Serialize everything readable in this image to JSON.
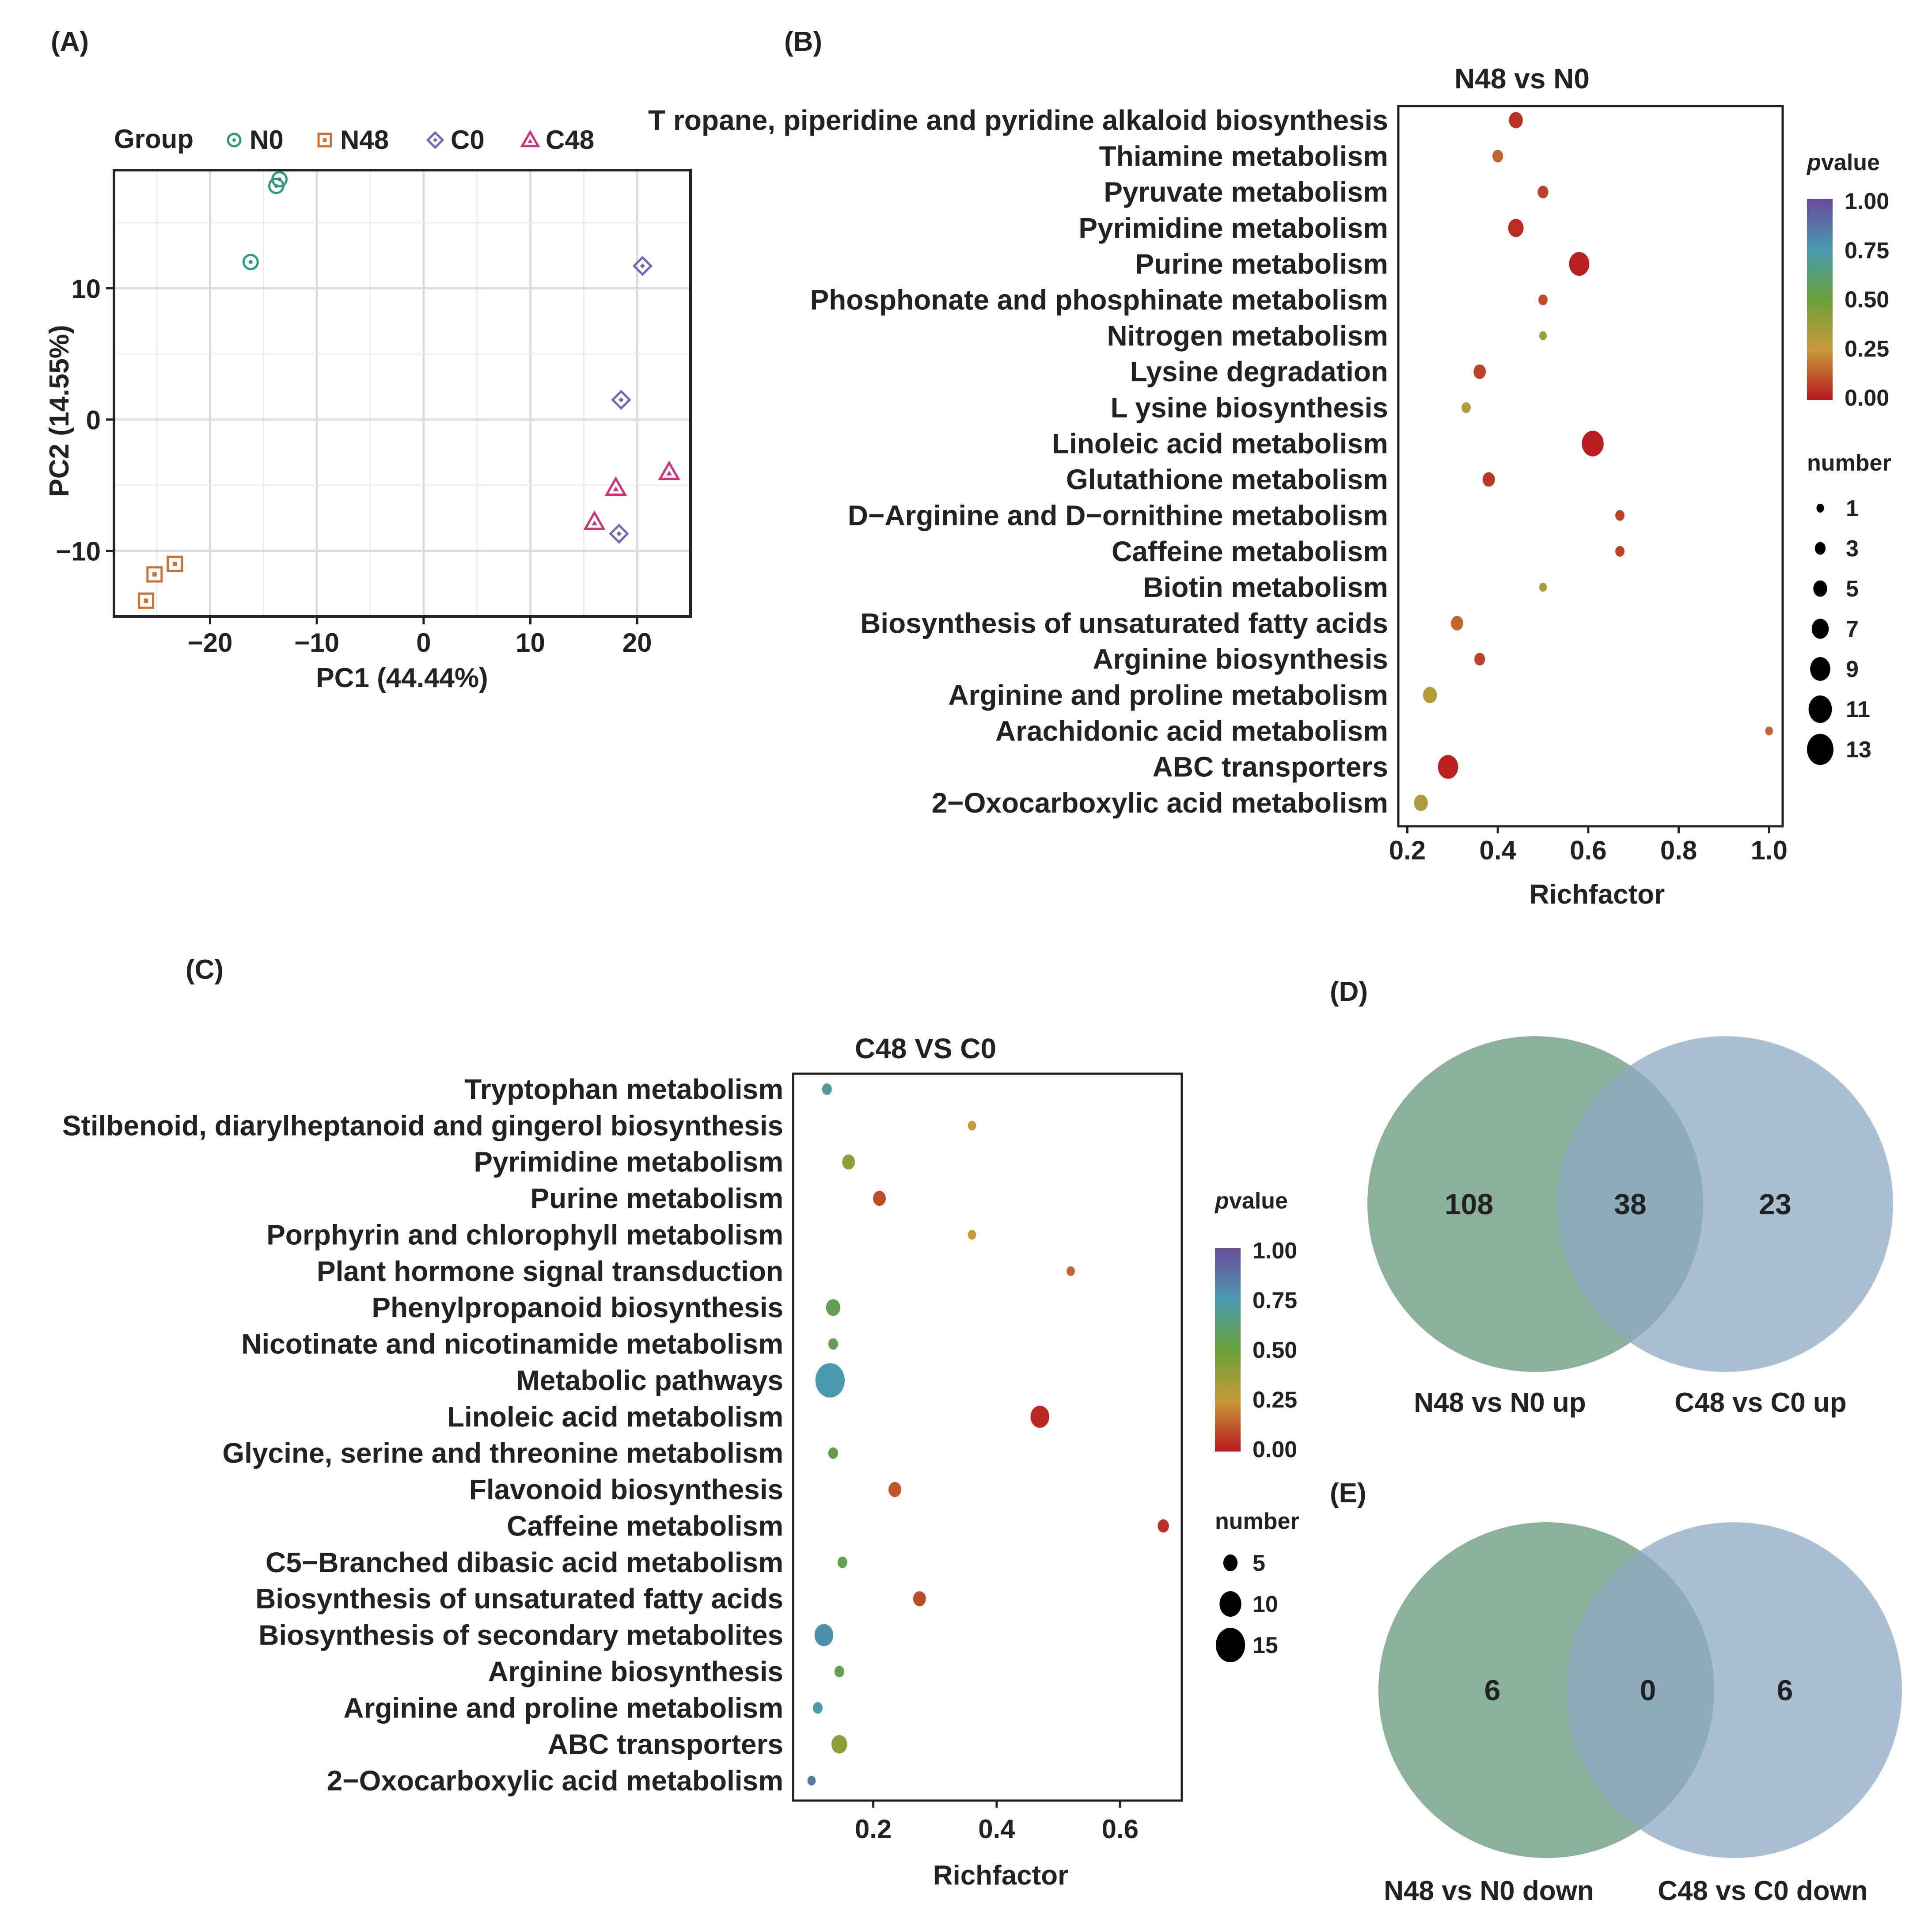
{
  "chart_data": [
    {
      "panel": "(A)",
      "type": "scatter",
      "title": "",
      "xlabel": "PC1 (44.44%)",
      "ylabel": "PC2 (14.55%)",
      "xlim": [
        -29,
        25
      ],
      "ylim": [
        -15,
        19
      ],
      "xticks": [
        -20,
        -10,
        0,
        10,
        20
      ],
      "xtick_labels": [
        "−20",
        "−10",
        "0",
        "10",
        "20"
      ],
      "yticks": [
        -10,
        0,
        10
      ],
      "ytick_labels": [
        "−10",
        "0",
        "10"
      ],
      "grid": true,
      "legend_title": "Group",
      "series": [
        {
          "name": "N0",
          "marker": "circle",
          "color": "#2e9a7a",
          "points": [
            [
              -13.5,
              18.3
            ],
            [
              -13.8,
              17.8
            ],
            [
              -16.2,
              12.0
            ]
          ]
        },
        {
          "name": "N48",
          "marker": "square",
          "color": "#d07030",
          "points": [
            [
              -23.3,
              -11.0
            ],
            [
              -25.2,
              -11.8
            ],
            [
              -26.0,
              -13.8
            ]
          ]
        },
        {
          "name": "C0",
          "marker": "diamond",
          "color": "#7468b0",
          "points": [
            [
              20.5,
              11.7
            ],
            [
              18.5,
              1.5
            ],
            [
              18.3,
              -8.7
            ]
          ]
        },
        {
          "name": "C48",
          "marker": "triangle",
          "color": "#d0307a",
          "points": [
            [
              23.0,
              -4.0
            ],
            [
              18.0,
              -5.2
            ],
            [
              16.0,
              -7.8
            ]
          ]
        }
      ]
    },
    {
      "panel": "(B)",
      "type": "scatter",
      "title": "N48 vs N0",
      "xlabel": "Richfactor",
      "ylabel": "",
      "xlim": [
        0.18,
        1.03
      ],
      "xticks": [
        0.2,
        0.4,
        0.6,
        0.8,
        1.0
      ],
      "xtick_labels": [
        "0.2",
        "0.4",
        "0.6",
        "0.8",
        "1.0"
      ],
      "color_legend_title": "value",
      "color_legend_ticks": [
        "1.00",
        "0.75",
        "0.50",
        "0.25",
        "0.00"
      ],
      "size_legend_title": "number",
      "size_legend_values": [
        1,
        3,
        5,
        7,
        9,
        11,
        13
      ],
      "size_legend_labels": [
        "1",
        "3",
        "5",
        "7",
        "9",
        "11",
        "13"
      ],
      "categories": [
        "T ropane, piperidine and pyridine alkaloid biosynthesis",
        "Thiamine metabolism",
        "Pyruvate metabolism",
        "Pyrimidine metabolism",
        "Purine metabolism",
        "Phosphonate and phosphinate metabolism",
        "Nitrogen metabolism",
        "Lysine degradation",
        "L ysine biosynthesis",
        "Linoleic acid metabolism",
        "Glutathione metabolism",
        "D−Arginine and D−ornithine metabolism",
        "Caffeine metabolism",
        "Biotin metabolism",
        "Biosynthesis of unsaturated fatty acids",
        "Arginine biosynthesis",
        "Arginine and proline metabolism",
        "Arachidonic acid metabolism",
        "ABC transporters",
        "2−Oxocarboxylic acid metabolism"
      ],
      "richfactor": [
        0.44,
        0.4,
        0.5,
        0.44,
        0.58,
        0.5,
        0.5,
        0.36,
        0.33,
        0.61,
        0.38,
        0.67,
        0.67,
        0.5,
        0.31,
        0.36,
        0.25,
        1.0,
        0.29,
        0.23
      ],
      "number": [
        5,
        3,
        3,
        6,
        9,
        2,
        1,
        4,
        2,
        10,
        4,
        2,
        2,
        1,
        4,
        3,
        5,
        1,
        9,
        5
      ],
      "pvalue": [
        0.05,
        0.15,
        0.08,
        0.04,
        0.02,
        0.1,
        0.35,
        0.08,
        0.3,
        0.01,
        0.06,
        0.08,
        0.08,
        0.35,
        0.15,
        0.08,
        0.3,
        0.15,
        0.02,
        0.32
      ]
    },
    {
      "panel": "(C)",
      "type": "scatter",
      "title": "C48 VS C0",
      "xlabel": "Richfactor",
      "ylabel": "",
      "xlim": [
        0.07,
        0.7
      ],
      "xticks": [
        0.2,
        0.4,
        0.6
      ],
      "xtick_labels": [
        "0.2",
        "0.4",
        "0.6"
      ],
      "color_legend_title": "value",
      "color_legend_ticks": [
        "1.00",
        "0.75",
        "0.50",
        "0.25",
        "0.00"
      ],
      "size_legend_title": "number",
      "size_legend_values": [
        5,
        10,
        15
      ],
      "size_legend_labels": [
        "5",
        "10",
        "15"
      ],
      "categories": [
        "Tryptophan metabolism",
        "Stilbenoid, diarylheptanoid and gingerol biosynthesis",
        "Pyrimidine metabolism",
        "Purine metabolism",
        "Porphyrin and chlorophyll metabolism",
        "Plant hormone signal transduction",
        "Phenylpropanoid biosynthesis",
        "Nicotinate and nicotinamide metabolism",
        "Metabolic pathways",
        "Linoleic acid metabolism",
        "Glycine, serine and threonine metabolism",
        "Flavonoid biosynthesis",
        "Caffeine metabolism",
        "C5−Branched dibasic acid metabolism",
        "Biosynthesis of unsaturated fatty acids",
        "Biosynthesis of secondary metabolites",
        "Arginine biosynthesis",
        "Arginine and proline metabolism",
        "ABC transporters",
        "2−Oxocarboxylic acid metabolism"
      ],
      "richfactor": [
        0.125,
        0.36,
        0.16,
        0.21,
        0.36,
        0.52,
        0.135,
        0.135,
        0.13,
        0.47,
        0.135,
        0.235,
        0.67,
        0.15,
        0.275,
        0.12,
        0.145,
        0.11,
        0.145,
        0.1
      ],
      "number": [
        2,
        1,
        4,
        4,
        1,
        1,
        5,
        2,
        15,
        8,
        2,
        4,
        3,
        2,
        4,
        8,
        2,
        2,
        6,
        1
      ],
      "pvalue": [
        0.7,
        0.25,
        0.4,
        0.1,
        0.25,
        0.15,
        0.55,
        0.55,
        0.75,
        0.03,
        0.55,
        0.12,
        0.05,
        0.55,
        0.1,
        0.78,
        0.55,
        0.75,
        0.4,
        0.85
      ]
    },
    {
      "panel": "(D)",
      "type": "venn",
      "sets": [
        {
          "label": "N48 vs N0 up",
          "only": 108,
          "color": "#6e9e82"
        },
        {
          "label": "C48 vs C0 up",
          "only": 23,
          "color": "#8fa9c3"
        }
      ],
      "overlap": 38
    },
    {
      "panel": "(E)",
      "type": "venn",
      "sets": [
        {
          "label": "N48 vs N0 down",
          "only": 6,
          "color": "#6e9e82"
        },
        {
          "label": "C48 vs C0 down",
          "only": 6,
          "color": "#8fa9c3"
        }
      ],
      "overlap": 0
    }
  ],
  "legend_p_symbol": "p",
  "colors": {
    "p_high": "#6a4a9a",
    "p_mid_high": "#4a9aae",
    "p_mid": "#6aa03a",
    "p_mid_low": "#c89a3a",
    "p_low": "#b8181e"
  }
}
